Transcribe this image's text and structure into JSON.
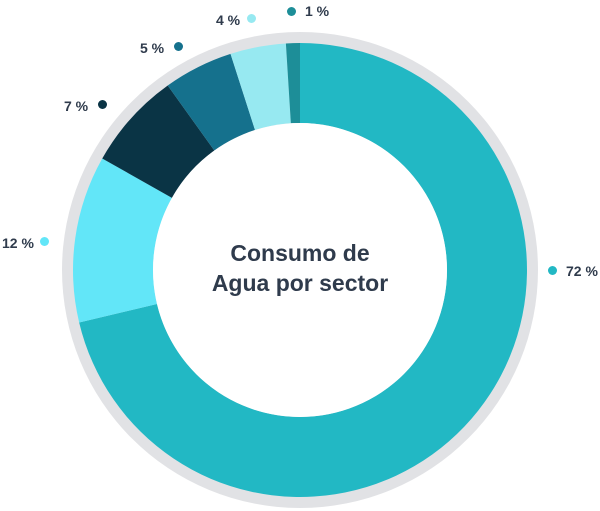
{
  "chart_data": {
    "type": "pie",
    "style": "donut",
    "title_lines": [
      "Consumo de",
      "Agua por sector"
    ],
    "slices": [
      {
        "label": "72 %",
        "value": 72,
        "color": "#22b8c4"
      },
      {
        "label": "12 %",
        "value": 12,
        "color": "#62e6f8"
      },
      {
        "label": "7 %",
        "value": 7,
        "color": "#0a3445"
      },
      {
        "label": "5 %",
        "value": 5,
        "color": "#15718d"
      },
      {
        "label": "4 %",
        "value": 4,
        "color": "#97e9f1"
      },
      {
        "label": "1 %",
        "value": 1,
        "color": "#1d8e98"
      }
    ],
    "ring_color": "#e1e2e5"
  }
}
